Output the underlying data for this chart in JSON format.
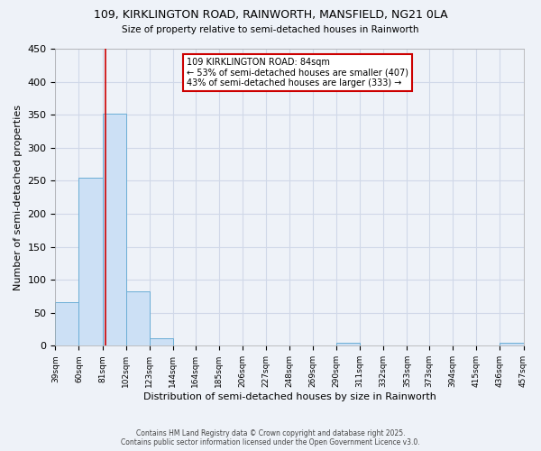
{
  "title_line1": "109, KIRKLINGTON ROAD, RAINWORTH, MANSFIELD, NG21 0LA",
  "title_line2": "Size of property relative to semi-detached houses in Rainworth",
  "xlabel": "Distribution of semi-detached houses by size in Rainworth",
  "ylabel": "Number of semi-detached properties",
  "bins": [
    39,
    60,
    81,
    102,
    123,
    144,
    164,
    185,
    206,
    227,
    248,
    269,
    290,
    311,
    332,
    353,
    373,
    394,
    415,
    436,
    457
  ],
  "counts": [
    66,
    255,
    352,
    82,
    11,
    0,
    0,
    0,
    0,
    0,
    0,
    0,
    5,
    0,
    0,
    0,
    0,
    0,
    0,
    5
  ],
  "bar_color": "#cce0f5",
  "bar_edgecolor": "#6baed6",
  "property_size": 84,
  "property_label": "109 KIRKLINGTON ROAD: 84sqm",
  "annotation_line2": "← 53% of semi-detached houses are smaller (407)",
  "annotation_line3": "43% of semi-detached houses are larger (333) →",
  "vline_color": "#cc0000",
  "annotation_box_edgecolor": "#cc0000",
  "annotation_box_facecolor": "#ffffff",
  "ylim": [
    0,
    450
  ],
  "yticks": [
    0,
    50,
    100,
    150,
    200,
    250,
    300,
    350,
    400,
    450
  ],
  "grid_color": "#d0d8e8",
  "background_color": "#eef2f8",
  "footer_line1": "Contains HM Land Registry data © Crown copyright and database right 2025.",
  "footer_line2": "Contains public sector information licensed under the Open Government Licence v3.0."
}
